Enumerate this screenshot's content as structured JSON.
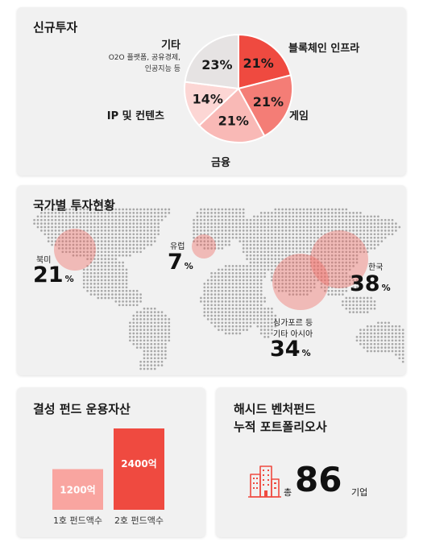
{
  "new_investment": {
    "title": "신규투자",
    "labels": {
      "blockchain": "블록체인 인프라",
      "game": "게임",
      "finance": "금융",
      "ip": "IP 및 컨텐츠",
      "etc": "기타",
      "etc_desc_1": "O2O 플랫폼, 공유경제,",
      "etc_desc_2": "인공지능 등"
    }
  },
  "chart_data": {
    "type": "pie",
    "slices": [
      {
        "name": "블록체인 인프라",
        "value": 21,
        "label": "21%",
        "color": "#ef4a40"
      },
      {
        "name": "게임",
        "value": 21,
        "label": "21%",
        "color": "#f47d76"
      },
      {
        "name": "금융",
        "value": 21,
        "label": "21%",
        "color": "#f9b9b6"
      },
      {
        "name": "IP 및 컨텐츠",
        "value": 14,
        "label": "14%",
        "color": "#fcd6d4"
      },
      {
        "name": "기타",
        "value": 23,
        "label": "23%",
        "color": "#e6e3e3"
      }
    ]
  },
  "country": {
    "title": "국가별 투자현황",
    "regions": [
      {
        "name": "북미",
        "value": "21",
        "unit": "%"
      },
      {
        "name": "유럽",
        "value": "7",
        "unit": "%"
      },
      {
        "name": "한국",
        "value": "38",
        "unit": "%"
      },
      {
        "name": "싱가포르 등",
        "name2": "기타 아시아",
        "value": "34",
        "unit": "%"
      }
    ]
  },
  "fund": {
    "title": "결성 펀드 운용자산",
    "bars": [
      {
        "label": "1호 펀드액수",
        "value_label": "1200억",
        "value": 1200,
        "color": "#f9a5a0"
      },
      {
        "label": "2호 펀드액수",
        "value_label": "2400억",
        "value": 2400,
        "color": "#ef4a40"
      }
    ]
  },
  "portfolio": {
    "title_1": "해시드 벤처펀드",
    "title_2": "누적 포트폴리오사",
    "prefix": "총",
    "count": "86",
    "suffix": "기업",
    "icon": "buildings-icon",
    "accent": "#ef4a40"
  }
}
